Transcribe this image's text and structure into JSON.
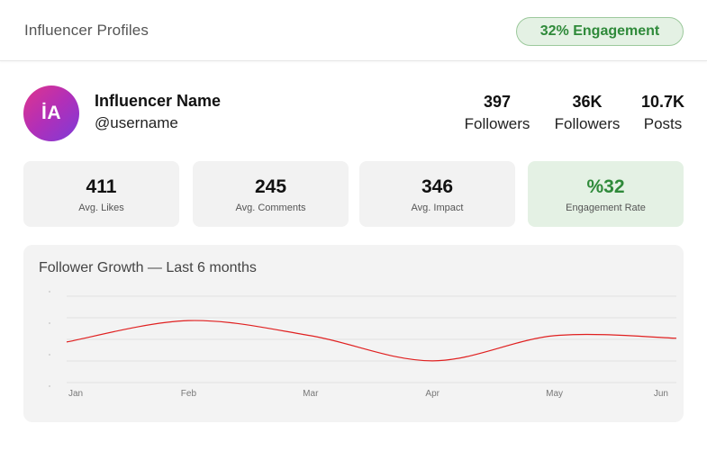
{
  "header": {
    "title": "Influencer Profiles",
    "engagement_badge": "32% Engagement"
  },
  "profile": {
    "avatar_initials": "İA",
    "name": "Influencer Name",
    "handle": "@username"
  },
  "stats": [
    {
      "value": "397",
      "label": "Followers"
    },
    {
      "value": "36K",
      "label": "Followers"
    },
    {
      "value": "10.7K",
      "label": "Posts"
    }
  ],
  "metrics": [
    {
      "value": "411",
      "label": "Avg. Likes"
    },
    {
      "value": "245",
      "label": "Avg. Comments"
    },
    {
      "value": "346",
      "label": "Avg. Impact"
    },
    {
      "value": "%32",
      "label": "Engagement Rate"
    }
  ],
  "colors": {
    "accent_green": "#2f8a3a",
    "badge_bg": "#e4f1e4",
    "line_red": "#e02020"
  },
  "chart_data": {
    "type": "line",
    "title": "Follower Growth — Last 6 months",
    "categories": [
      "Jan",
      "Feb",
      "Mar",
      "Apr",
      "May",
      "Jun"
    ],
    "series": [
      {
        "values": [
          1.65,
          2.5,
          1.9,
          0.9,
          1.9,
          1.8
        ]
      }
    ],
    "ylim": [
      0,
      3.9
    ],
    "grid": true,
    "legend": "none"
  }
}
